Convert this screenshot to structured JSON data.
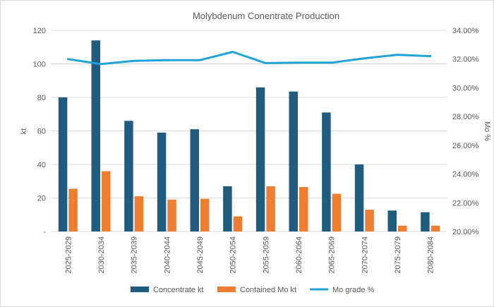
{
  "chart_data": {
    "type": "bar",
    "title": "Molybdenum Conentrate Production",
    "categories": [
      "2025-2029",
      "2030-2034",
      "2035-2039",
      "2040-2044",
      "2045-2049",
      "2050-2054",
      "2055-2059",
      "2060-2064",
      "2065-2069",
      "2070-2074",
      "2075-2079",
      "2080-2084"
    ],
    "series": [
      {
        "name": "Concentrate kt",
        "kind": "bar",
        "axis": "left",
        "color": "#1f5c80",
        "values": [
          80,
          114,
          66,
          59,
          61,
          27,
          86,
          83.5,
          71,
          40,
          12.5,
          11.5
        ]
      },
      {
        "name": "Contained Mo kt",
        "kind": "bar",
        "axis": "left",
        "color": "#ed7d31",
        "values": [
          25.5,
          36,
          21,
          19,
          19.5,
          9,
          27,
          26.5,
          22.5,
          13,
          3.5,
          3.5
        ]
      },
      {
        "name": "Mo grade %",
        "kind": "line",
        "axis": "right",
        "color": "#1fa3d6",
        "values": [
          32.0,
          31.65,
          31.88,
          31.92,
          31.92,
          32.5,
          31.72,
          31.75,
          31.75,
          32.05,
          32.3,
          32.2
        ]
      }
    ],
    "ylabel": "kt",
    "y2label": "Mo %",
    "ylim": [
      0,
      120
    ],
    "yticks": [
      0,
      20,
      40,
      60,
      80,
      100,
      120
    ],
    "ytick_labels": [
      "-",
      "20",
      "40",
      "60",
      "80",
      "100",
      "120"
    ],
    "y2lim": [
      20,
      34
    ],
    "y2ticks": [
      20,
      22,
      24,
      26,
      28,
      30,
      32,
      34
    ],
    "y2tick_labels": [
      "20.00%",
      "22.00%",
      "24.00%",
      "26.00%",
      "28.00%",
      "30.00%",
      "32.00%",
      "34.00%"
    ],
    "grid": true,
    "legend_position": "bottom"
  }
}
